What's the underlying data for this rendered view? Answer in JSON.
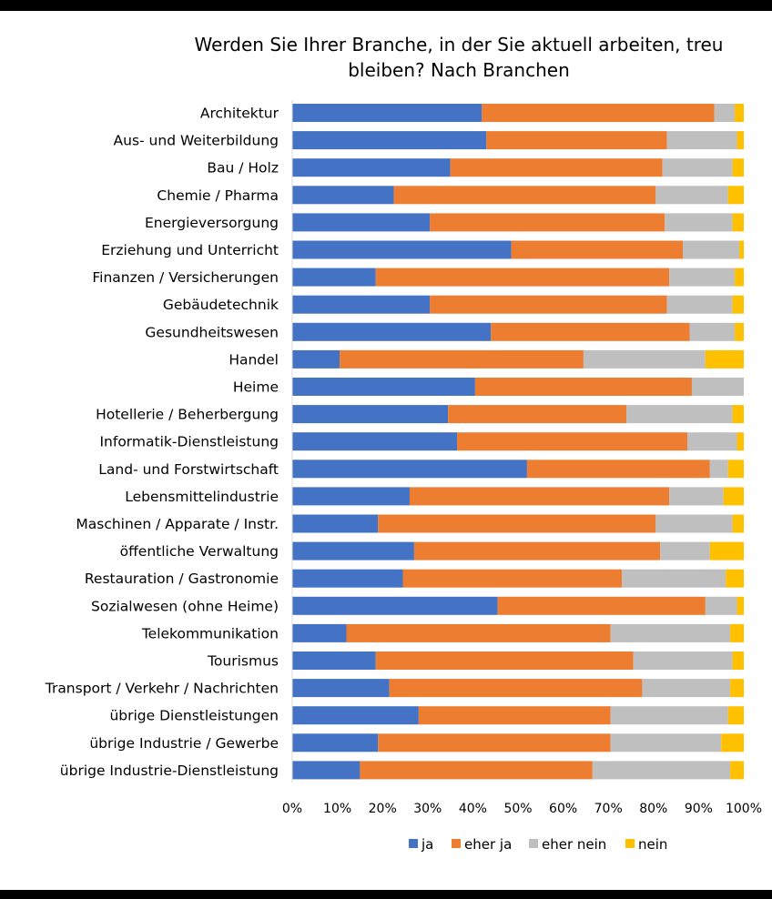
{
  "chart_data": {
    "type": "bar",
    "orientation": "horizontal",
    "stacked": "percent",
    "title": "Werden Sie Ihrer Branche, in der Sie aktuell arbeiten, treu bleiben? Nach Branchen",
    "title_lines": [
      "Werden Sie Ihrer Branche, in der Sie aktuell arbeiten, treu",
      "bleiben? Nach Branchen"
    ],
    "xlabel": "",
    "ylabel": "",
    "xlim": [
      0,
      100
    ],
    "x_ticks": [
      "0%",
      "10%",
      "20%",
      "30%",
      "40%",
      "50%",
      "60%",
      "70%",
      "80%",
      "90%",
      "100%"
    ],
    "grid": false,
    "legend_position": "bottom",
    "categories": [
      "Architektur",
      "Aus- und Weiterbildung",
      "Bau / Holz",
      "Chemie / Pharma",
      "Energieversorgung",
      "Erziehung und Unterricht",
      "Finanzen / Versicherungen",
      "Gebäudetechnik",
      "Gesundheitswesen",
      "Handel",
      "Heime",
      "Hotellerie / Beherbergung",
      "Informatik-Dienstleistung",
      "Land- und Forstwirtschaft",
      "Lebensmittelindustrie",
      "Maschinen / Apparate / Instr.",
      "öffentliche Verwaltung",
      "Restauration / Gastronomie",
      "Sozialwesen (ohne Heime)",
      "Telekommunikation",
      "Tourismus",
      "Transport / Verkehr / Nachrichten",
      "übrige Dienstleistungen",
      "übrige Industrie / Gewerbe",
      "übrige Industrie-Dienstleistung"
    ],
    "series": [
      {
        "name": "ja",
        "color": "#4472C4",
        "values": [
          42,
          43,
          35,
          22.5,
          30.5,
          48.5,
          18.5,
          30.5,
          44,
          10.5,
          40.5,
          34.5,
          36.5,
          52,
          26,
          19,
          27,
          24.5,
          45.5,
          12,
          18.5,
          21.5,
          28,
          19,
          15
        ]
      },
      {
        "name": "eher ja",
        "color": "#ED7D31",
        "values": [
          51.5,
          40,
          47,
          58,
          52,
          38,
          65,
          52.5,
          44,
          54,
          48,
          39.5,
          51,
          40.5,
          57.5,
          61.5,
          54.5,
          48.5,
          46,
          58.5,
          57,
          56,
          42.5,
          51.5,
          51.5
        ]
      },
      {
        "name": "eher nein",
        "color": "#BFBFBF",
        "values": [
          4.5,
          15.5,
          15.5,
          16,
          15,
          12.5,
          14.5,
          14.5,
          10,
          27,
          11.5,
          23.5,
          11,
          4,
          12,
          17,
          11,
          23,
          7,
          26.5,
          22,
          19.5,
          26,
          24.5,
          30.5
        ]
      },
      {
        "name": "nein",
        "color": "#FFC000",
        "values": [
          2,
          1.5,
          2.5,
          3.5,
          2.5,
          1,
          2,
          2.5,
          2,
          8.5,
          0,
          2.5,
          1.5,
          3.5,
          4.5,
          2.5,
          7.5,
          4,
          1.5,
          3,
          2.5,
          3,
          3.5,
          5,
          3
        ]
      }
    ]
  }
}
